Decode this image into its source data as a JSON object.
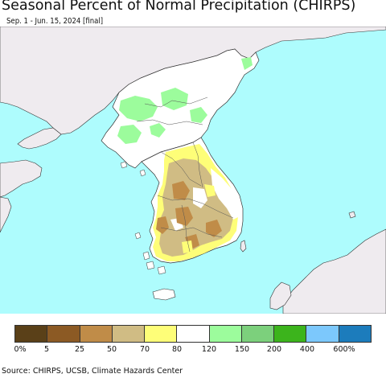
{
  "title": "Seasonal Percent of Normal Precipitation (CHIRPS)",
  "subtitle": "Sep. 1 - Jun. 15, 2024 [final]",
  "colors": {
    "ocean": "#aefcfd",
    "foreign_land": "#efebef",
    "border": "#111111"
  },
  "legend": {
    "colors": [
      "#5a4018",
      "#8c5a24",
      "#c08c48",
      "#d0bc84",
      "#fefe78",
      "#ffffff",
      "#9cfc9c",
      "#7cd07c",
      "#3cb41c",
      "#7cc8fc",
      "#1c7cbc"
    ],
    "labels": [
      "0%",
      "5",
      "25",
      "50",
      "70",
      "80",
      "120",
      "150",
      "200",
      "400",
      "600%"
    ]
  },
  "source": "Source: CHIRPS, UCSB, Climate Hazards Center"
}
